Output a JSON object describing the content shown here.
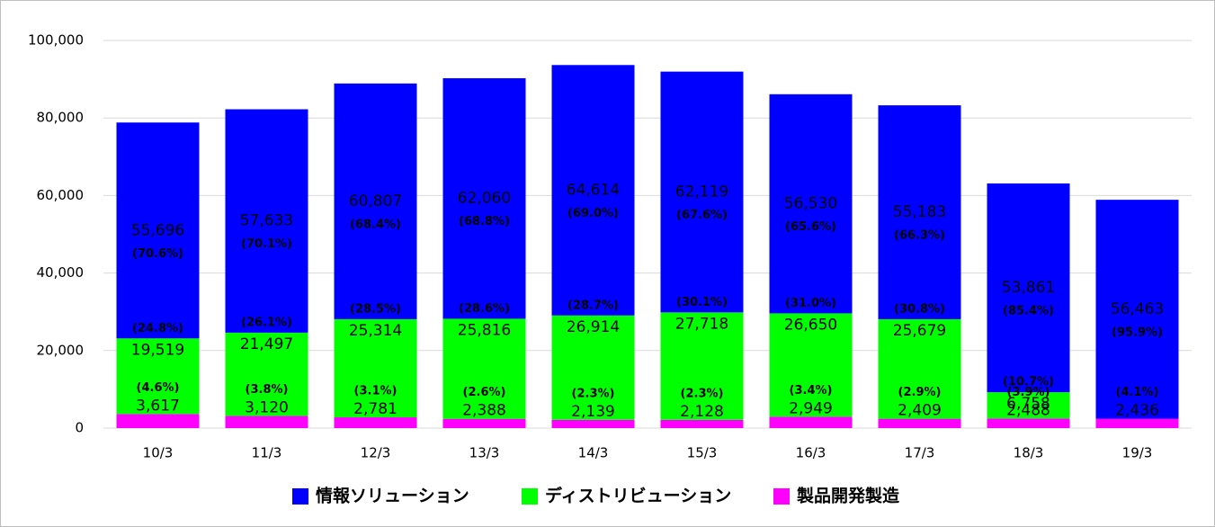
{
  "chart_data": {
    "type": "stacked_bar",
    "categories": [
      "10/3",
      "11/3",
      "12/3",
      "13/3",
      "14/3",
      "15/3",
      "16/3",
      "17/3",
      "18/3",
      "19/3"
    ],
    "series": [
      {
        "name": "情報ソリューション",
        "color": "#0000ff",
        "values": [
          55696,
          57633,
          60807,
          62060,
          64614,
          62119,
          56530,
          55183,
          53861,
          56463
        ],
        "value_labels": [
          "55,696",
          "57,633",
          "60,807",
          "62,060",
          "64,614",
          "62,119",
          "56,530",
          "55,183",
          "53,861",
          "56,463"
        ],
        "share_labels": [
          "(70.6%)",
          "(70.1%)",
          "(68.4%)",
          "(68.8%)",
          "(69.0%)",
          "(67.6%)",
          "(65.6%)",
          "(66.3%)",
          "(85.4%)",
          "(95.9%)"
        ]
      },
      {
        "name": "ディストリビューション",
        "color": "#00ff00",
        "values": [
          19519,
          21497,
          25314,
          25816,
          26914,
          27718,
          26650,
          25679,
          6758,
          null
        ],
        "value_labels": [
          "19,519",
          "21,497",
          "25,314",
          "25,816",
          "26,914",
          "27,718",
          "26,650",
          "25,679",
          "6,758",
          null
        ],
        "share_labels": [
          "(24.8%)",
          "(26.1%)",
          "(28.5%)",
          "(28.6%)",
          "(28.7%)",
          "(30.1%)",
          "(31.0%)",
          "(30.8%)",
          "(10.7%)",
          null
        ]
      },
      {
        "name": "製品開発製造",
        "color": "#ff00ff",
        "values": [
          3617,
          3120,
          2781,
          2388,
          2139,
          2128,
          2949,
          2409,
          2488,
          2436
        ],
        "value_labels": [
          "3,617",
          "3,120",
          "2,781",
          "2,388",
          "2,139",
          "2,128",
          "2,949",
          "2,409",
          "2,488",
          "2,436"
        ],
        "share_labels": [
          "(4.6%)",
          "(3.8%)",
          "(3.1%)",
          "(2.6%)",
          "(2.3%)",
          "(2.3%)",
          "(3.4%)",
          "(2.9%)",
          "(3.9%)",
          "(4.1%)"
        ]
      }
    ],
    "ylim": [
      0,
      100000
    ],
    "yticks": [
      0,
      {
        "value": 20000,
        "label": "20,000"
      },
      {
        "value": 40000,
        "label": "40,000"
      },
      {
        "value": 60000,
        "label": "60,000"
      },
      {
        "value": 80000,
        "label": "80,000"
      },
      {
        "value": 100000,
        "label": "100,000"
      }
    ],
    "grid": true,
    "legend": "bottom"
  }
}
